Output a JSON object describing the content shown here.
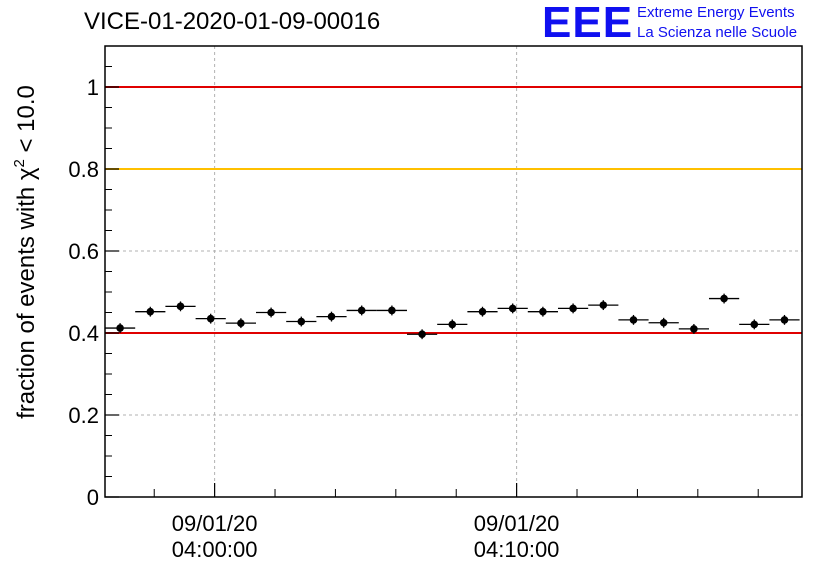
{
  "header": {
    "title": "VICE-01-2020-01-09-00016",
    "logo_mark": "EEE",
    "logo_line1": "Extreme Energy Events",
    "logo_line2": "La Scienza nelle Scuole"
  },
  "colors": {
    "threshold_red": "#e00000",
    "threshold_yellow": "#ffc000",
    "markers": "#000000",
    "grid": "#b0b0b0",
    "logo_blue": "#1010f0"
  },
  "chart_data": {
    "type": "scatter",
    "title": "VICE-01-2020-01-09-00016",
    "ylabel_parts": [
      "fraction of events with ",
      "χ",
      "2",
      " < 10.0"
    ],
    "ylim": [
      0,
      1.1
    ],
    "y_ticks": [
      {
        "value": 0,
        "label": "0"
      },
      {
        "value": 0.2,
        "label": "0.2"
      },
      {
        "value": 0.4,
        "label": "0.4"
      },
      {
        "value": 0.6,
        "label": "0.6"
      },
      {
        "value": 0.8,
        "label": "0.8"
      },
      {
        "value": 1.0,
        "label": "1"
      }
    ],
    "xlim_minutes": [
      -3.63,
      19.45
    ],
    "x_ticks": [
      {
        "minute": 0,
        "line1": "09/01/20",
        "line2": "04:00:00"
      },
      {
        "minute": 10,
        "line1": "09/01/20",
        "line2": "04:10:00"
      }
    ],
    "x_minor_ticks_minutes": [
      -2,
      2,
      4,
      6,
      8,
      12,
      14,
      16,
      18
    ],
    "grid": true,
    "bin_width_minutes": 1,
    "reference_lines": [
      {
        "y": 1.0,
        "color": "red"
      },
      {
        "y": 0.8,
        "color": "yellow"
      },
      {
        "y": 0.4,
        "color": "red"
      }
    ],
    "series": [
      {
        "x_minutes": [
          -3.13,
          -2.13,
          -1.13,
          -0.13,
          0.87,
          1.87,
          2.87,
          3.87,
          4.87,
          5.87,
          6.87,
          7.87,
          8.87,
          9.87,
          10.87,
          11.87,
          12.87,
          13.87,
          14.87,
          15.87,
          16.87,
          17.87,
          18.87
        ],
        "y": [
          0.412,
          0.452,
          0.465,
          0.435,
          0.424,
          0.45,
          0.428,
          0.44,
          0.455,
          0.455,
          0.397,
          0.421,
          0.452,
          0.46,
          0.452,
          0.46,
          0.468,
          0.432,
          0.425,
          0.41,
          0.484,
          0.421,
          0.432
        ],
        "y_err": [
          0.012,
          0.012,
          0.012,
          0.012,
          0.012,
          0.012,
          0.012,
          0.012,
          0.012,
          0.012,
          0.012,
          0.012,
          0.012,
          0.012,
          0.012,
          0.012,
          0.012,
          0.012,
          0.012,
          0.012,
          0.012,
          0.012,
          0.012
        ]
      }
    ]
  }
}
